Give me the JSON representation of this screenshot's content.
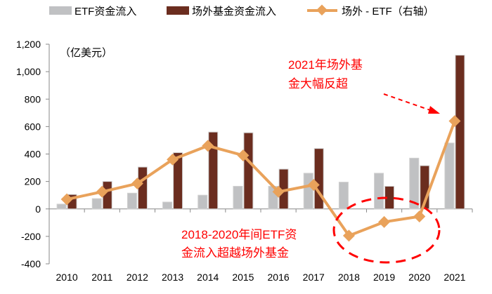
{
  "chart_data": {
    "type": "bar+line",
    "categories": [
      "2010",
      "2011",
      "2012",
      "2013",
      "2014",
      "2015",
      "2016",
      "2017",
      "2018",
      "2019",
      "2020",
      "2021"
    ],
    "series": [
      {
        "name": "ETF资金流入",
        "type": "bar",
        "color": "#c0c1c3",
        "values": [
          35,
          75,
          115,
          50,
          100,
          165,
          165,
          260,
          195,
          260,
          370,
          480
        ]
      },
      {
        "name": "场外基金资金流入",
        "type": "bar",
        "color": "#6b2d1f",
        "values": [
          105,
          200,
          305,
          410,
          560,
          555,
          290,
          440,
          0,
          165,
          315,
          1120
        ]
      },
      {
        "name": "场外 - ETF（右轴）",
        "type": "line",
        "color": "#e9a25b",
        "values": [
          70,
          125,
          185,
          360,
          460,
          390,
          125,
          175,
          -195,
          -95,
          -55,
          640
        ]
      }
    ],
    "unit_label": "（亿美元）",
    "ylim": [
      -400,
      1200
    ],
    "yticks": [
      "-400",
      "-200",
      "0",
      "200",
      "400",
      "600",
      "800",
      "1,000",
      "1,200"
    ],
    "legend": "top",
    "grid": false,
    "annotations": [
      {
        "lines": [
          "2021年场外基",
          "金大幅反超"
        ],
        "color": "#ff0000"
      },
      {
        "lines": [
          "2018-2020年间ETF资",
          "金流入超越场外基金"
        ],
        "color": "#ff0000"
      }
    ]
  }
}
